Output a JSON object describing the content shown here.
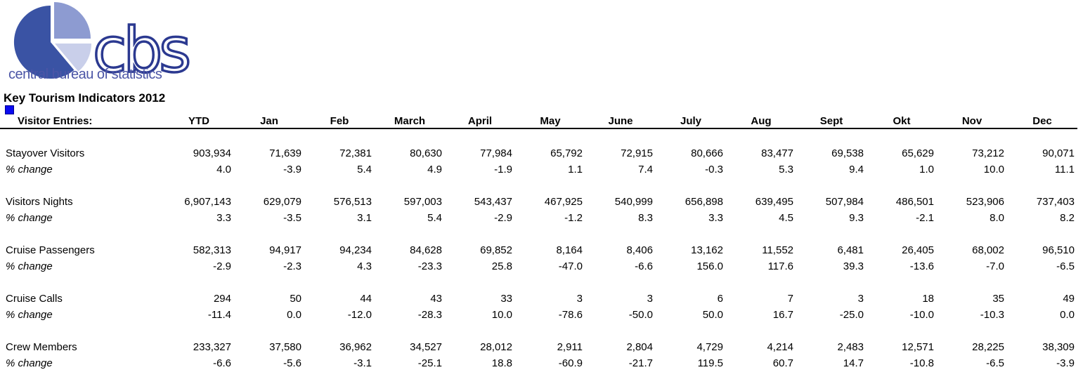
{
  "logo": {
    "acronym": "cbs",
    "tagline": "central bureau of statistics",
    "colors": {
      "pie_dark": "#3A53A4",
      "pie_medium": "#8D9BD1",
      "pie_light": "#C9CFEA",
      "acronym_blue": "#2B3990",
      "tagline_blue": "#4B55A6"
    }
  },
  "title": "Key Tourism Indicators 2012",
  "marker_color": "#0A0AF0",
  "table": {
    "label_header": "Visitor Entries:",
    "columns": [
      "YTD",
      "Jan",
      "Feb",
      "March",
      "April",
      "May",
      "June",
      "July",
      "Aug",
      "Sept",
      "Okt",
      "Nov",
      "Dec"
    ],
    "rows": [
      {
        "label": "Stayover Visitors",
        "style": "name",
        "values": [
          "903,934",
          "71,639",
          "72,381",
          "80,630",
          "77,984",
          "65,792",
          "72,915",
          "80,666",
          "83,477",
          "69,538",
          "65,629",
          "73,212",
          "90,071"
        ]
      },
      {
        "label": "% change",
        "style": "pct",
        "values": [
          "4.0",
          "-3.9",
          "5.4",
          "4.9",
          "-1.9",
          "1.1",
          "7.4",
          "-0.3",
          "5.3",
          "9.4",
          "1.0",
          "10.0",
          "11.1"
        ]
      },
      {
        "label": "Visitors Nights",
        "style": "name",
        "values": [
          "6,907,143",
          "629,079",
          "576,513",
          "597,003",
          "543,437",
          "467,925",
          "540,999",
          "656,898",
          "639,495",
          "507,984",
          "486,501",
          "523,906",
          "737,403"
        ]
      },
      {
        "label": "% change",
        "style": "pct",
        "values": [
          "3.3",
          "-3.5",
          "3.1",
          "5.4",
          "-2.9",
          "-1.2",
          "8.3",
          "3.3",
          "4.5",
          "9.3",
          "-2.1",
          "8.0",
          "8.2"
        ]
      },
      {
        "label": "Cruise Passengers",
        "style": "name",
        "values": [
          "582,313",
          "94,917",
          "94,234",
          "84,628",
          "69,852",
          "8,164",
          "8,406",
          "13,162",
          "11,552",
          "6,481",
          "26,405",
          "68,002",
          "96,510"
        ]
      },
      {
        "label": "% change",
        "style": "pct",
        "values": [
          "-2.9",
          "-2.3",
          "4.3",
          "-23.3",
          "25.8",
          "-47.0",
          "-6.6",
          "156.0",
          "117.6",
          "39.3",
          "-13.6",
          "-7.0",
          "-6.5"
        ]
      },
      {
        "label": "Cruise Calls",
        "style": "name",
        "values": [
          "294",
          "50",
          "44",
          "43",
          "33",
          "3",
          "3",
          "6",
          "7",
          "3",
          "18",
          "35",
          "49"
        ]
      },
      {
        "label": "% change",
        "style": "pct",
        "values": [
          "-11.4",
          "0.0",
          "-12.0",
          "-28.3",
          "10.0",
          "-78.6",
          "-50.0",
          "50.0",
          "16.7",
          "-25.0",
          "-10.0",
          "-10.3",
          "0.0"
        ]
      },
      {
        "label": "Crew Members",
        "style": "name",
        "values": [
          "233,327",
          "37,580",
          "36,962",
          "34,527",
          "28,012",
          "2,911",
          "2,804",
          "4,729",
          "4,214",
          "2,483",
          "12,571",
          "28,225",
          "38,309"
        ]
      },
      {
        "label": "% change",
        "style": "pct",
        "values": [
          "-6.6",
          "-5.6",
          "-3.1",
          "-25.1",
          "18.8",
          "-60.9",
          "-21.7",
          "119.5",
          "60.7",
          "14.7",
          "-10.8",
          "-6.5",
          "-3.9"
        ]
      }
    ]
  }
}
